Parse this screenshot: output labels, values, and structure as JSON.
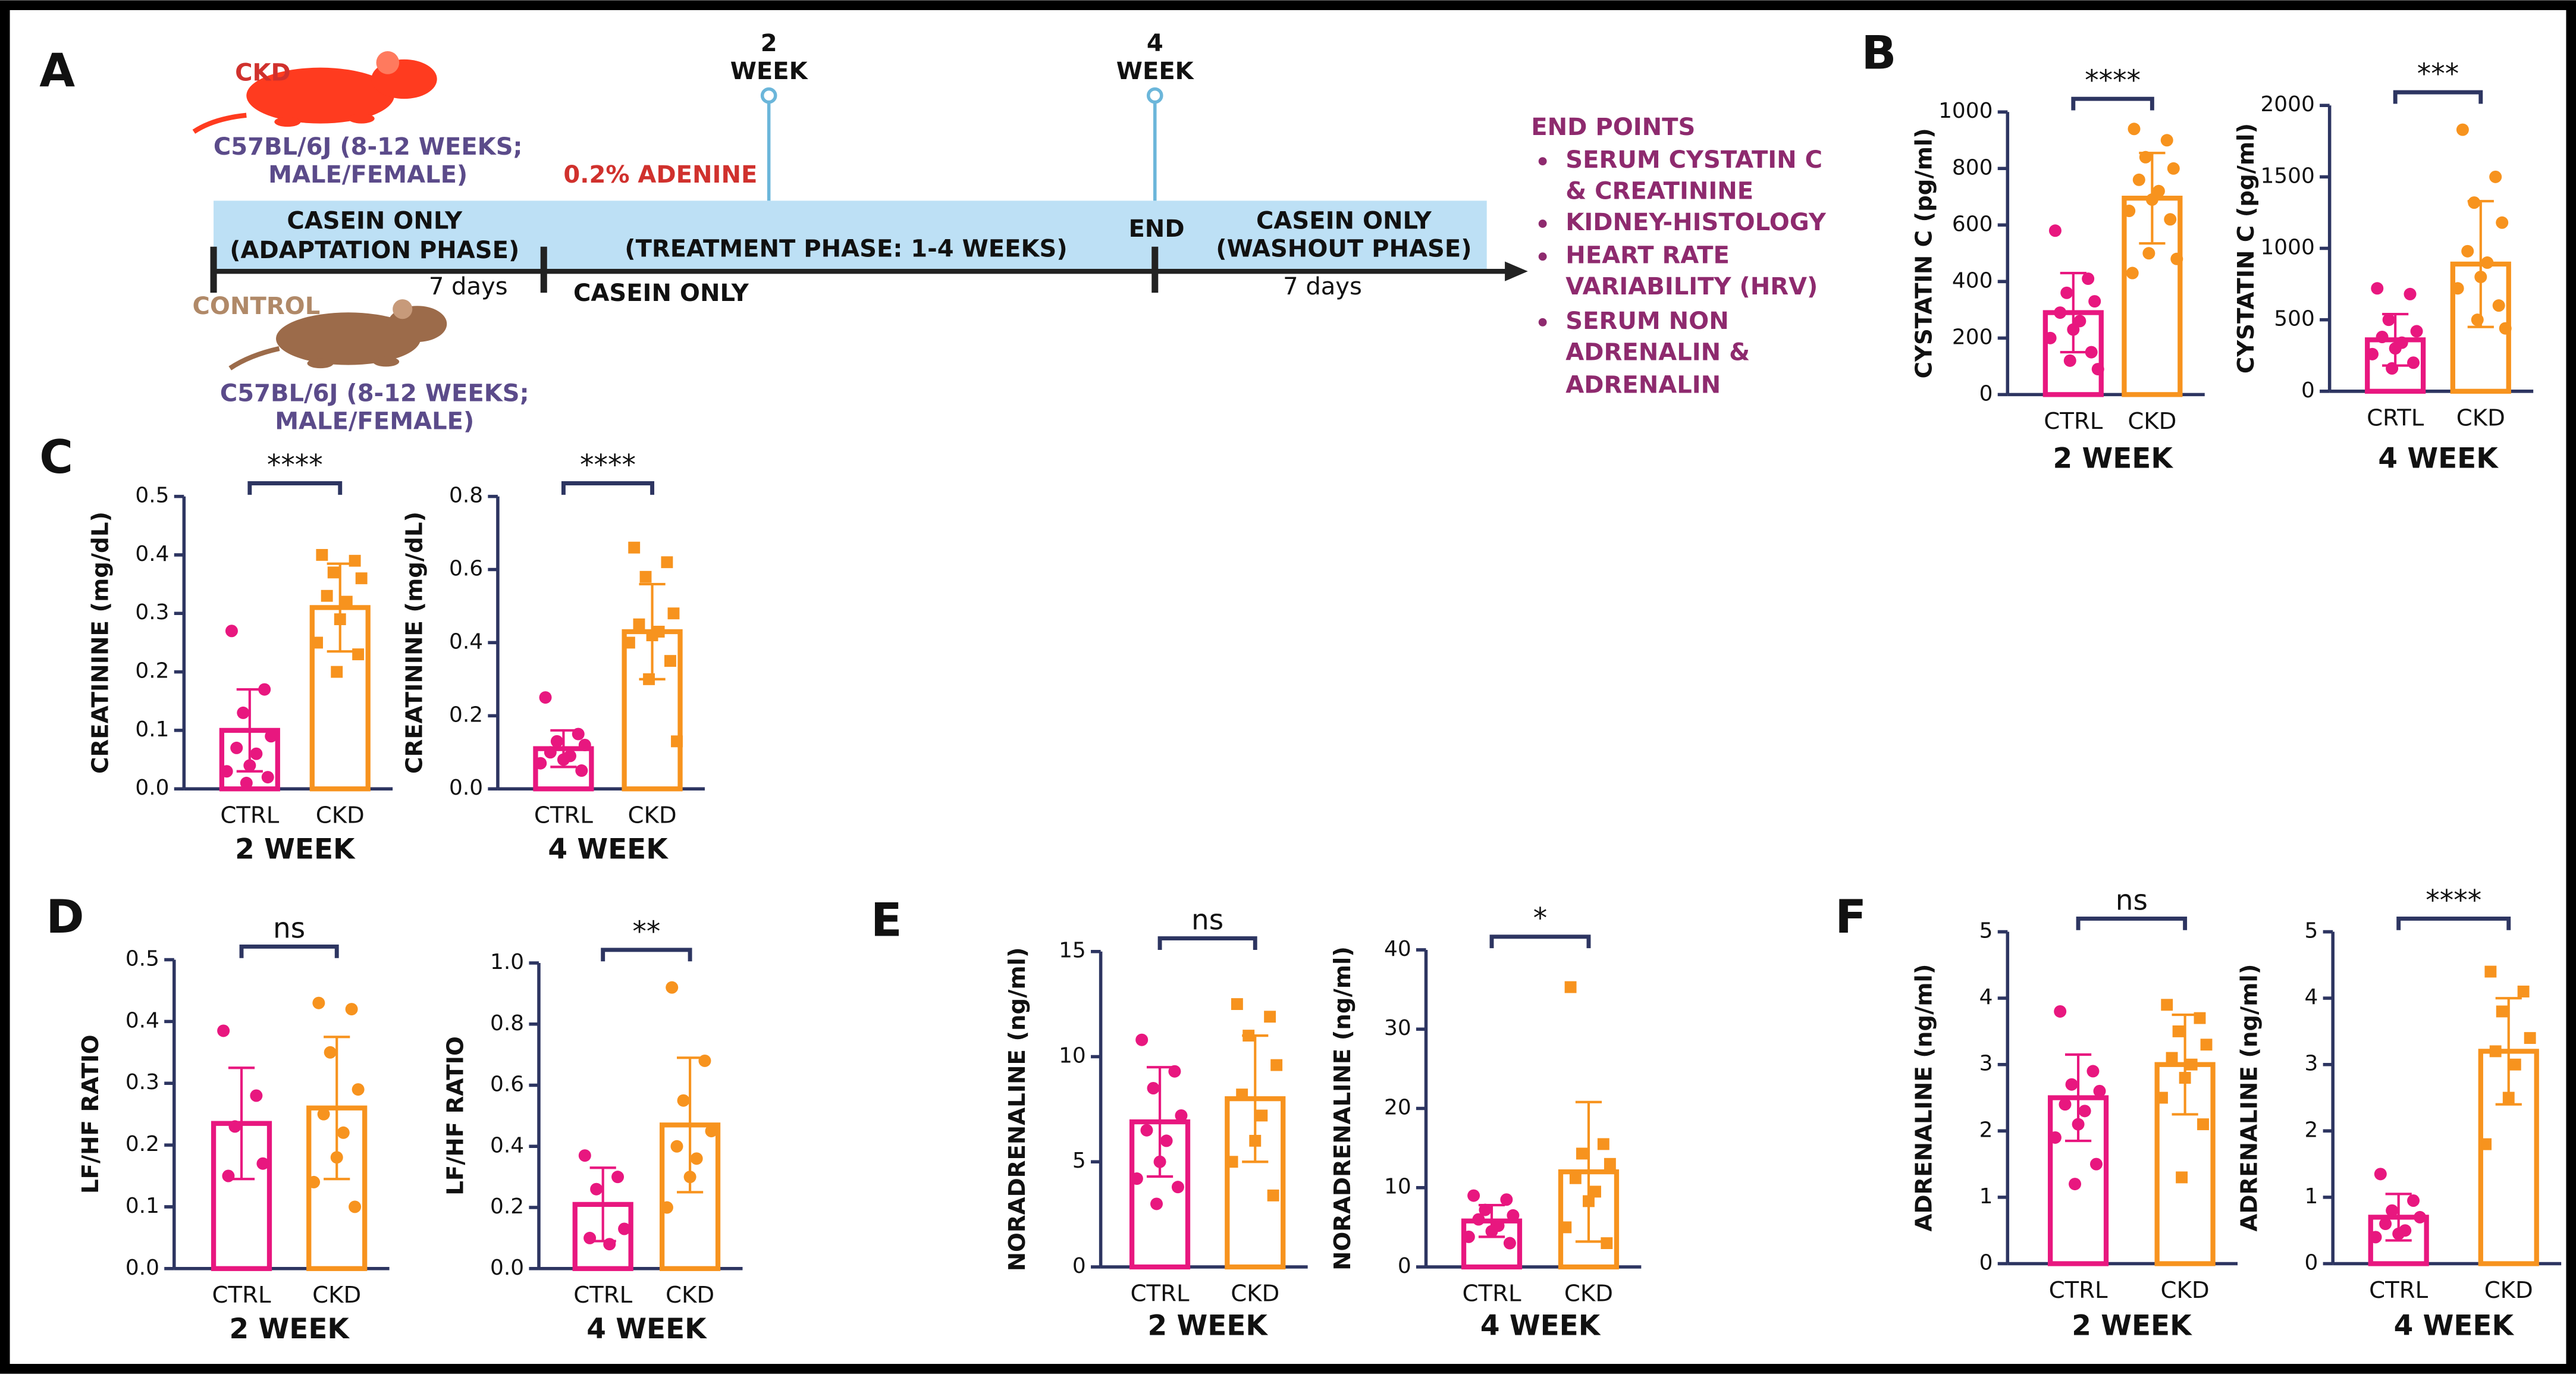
{
  "panel_labels": [
    "A",
    "B",
    "C",
    "D",
    "E",
    "F"
  ],
  "diagram": {
    "ckd_label": "CKD",
    "ckd_strain": [
      "C57BL/6J (8-12 WEEKS;",
      "MALE/FEMALE)"
    ],
    "control_label": "CONTROL",
    "control_strain": [
      "C57BL/6J (8-12 WEEKS;",
      "MALE/FEMALE)"
    ],
    "adenine": "0.2% ADENINE",
    "timepoints": [
      [
        "2",
        "WEEK"
      ],
      [
        "4",
        "WEEK"
      ]
    ],
    "adaptation": [
      "CASEIN ONLY",
      "(ADAPTATION PHASE)"
    ],
    "treatment": "(TREATMENT PHASE: 1-4 WEEKS)",
    "end": "END",
    "washout": [
      "CASEIN ONLY",
      "(WASHOUT PHASE)"
    ],
    "below_line": [
      "7 days",
      "CASEIN ONLY",
      "7 days"
    ],
    "end_points": {
      "title": "END POINTS",
      "items": [
        [
          "SERUM CYSTATIN C",
          "& CREATININE"
        ],
        [
          "KIDNEY-HISTOLOGY"
        ],
        [
          "HEART RATE",
          "VARIABILITY (HRV)"
        ],
        [
          "SERUM NON",
          "ADRENALIN &",
          "ADRENALIN"
        ]
      ]
    }
  },
  "chart_data": [
    {
      "type": "bar",
      "y_label": "CYSTATIN C (pg/ml)",
      "x_label": "2 WEEK",
      "categories": [
        "CTRL",
        "CKD"
      ],
      "colors": [
        "#e8177f",
        "#f7931e"
      ],
      "markers": [
        "circle",
        "circle"
      ],
      "values": [
        290,
        695
      ],
      "errors": [
        140,
        160
      ],
      "points": [
        [
          580,
          410,
          360,
          330,
          290,
          260,
          230,
          200,
          150,
          120,
          90
        ],
        [
          940,
          900,
          840,
          800,
          760,
          720,
          690,
          650,
          620,
          500,
          480,
          430
        ]
      ],
      "significance": "****",
      "ylim": [
        0,
        1000
      ],
      "yticks": [
        0,
        200,
        400,
        600,
        800,
        1000
      ]
    },
    {
      "type": "bar",
      "y_label": "CYSTATIN C (pg/ml)",
      "x_label": "4 WEEK",
      "categories": [
        "CRTL",
        "CKD"
      ],
      "colors": [
        "#e8177f",
        "#f7931e"
      ],
      "markers": [
        "circle",
        "circle"
      ],
      "values": [
        360,
        890
      ],
      "errors": [
        180,
        440
      ],
      "points": [
        [
          720,
          680,
          500,
          420,
          380,
          340,
          300,
          260,
          200,
          160
        ],
        [
          1830,
          1500,
          1320,
          1180,
          980,
          900,
          800,
          720,
          600,
          500,
          440
        ]
      ],
      "significance": "***",
      "ylim": [
        0,
        2000
      ],
      "yticks": [
        0,
        500,
        1000,
        1500,
        2000
      ]
    },
    {
      "type": "bar",
      "y_label": "CREATININE (mg/dL)",
      "x_label": "2 WEEK",
      "categories": [
        "CTRL",
        "CKD"
      ],
      "colors": [
        "#e8177f",
        "#f7931e"
      ],
      "markers": [
        "circle",
        "square"
      ],
      "values": [
        0.1,
        0.31
      ],
      "errors": [
        0.07,
        0.075
      ],
      "points": [
        [
          0.27,
          0.17,
          0.13,
          0.09,
          0.07,
          0.06,
          0.04,
          0.03,
          0.02,
          0.01
        ],
        [
          0.4,
          0.39,
          0.37,
          0.36,
          0.33,
          0.32,
          0.29,
          0.25,
          0.23,
          0.2
        ]
      ],
      "significance": "****",
      "ylim": [
        0,
        0.5
      ],
      "yticks": [
        {
          "value": 0,
          "label": "0.0"
        },
        0.1,
        0.2,
        0.3,
        0.4,
        0.5
      ]
    },
    {
      "type": "bar",
      "y_label": "CREATININE (mg/dL)",
      "x_label": "4 WEEK",
      "categories": [
        "CTRL",
        "CKD"
      ],
      "colors": [
        "#e8177f",
        "#f7931e"
      ],
      "markers": [
        "circle",
        "square"
      ],
      "values": [
        0.11,
        0.43
      ],
      "errors": [
        0.05,
        0.13
      ],
      "points": [
        [
          0.25,
          0.15,
          0.13,
          0.12,
          0.1,
          0.09,
          0.08,
          0.07,
          0.05
        ],
        [
          0.66,
          0.62,
          0.58,
          0.48,
          0.45,
          0.43,
          0.42,
          0.4,
          0.35,
          0.3,
          0.13
        ]
      ],
      "significance": "****",
      "ylim": [
        0,
        0.8
      ],
      "yticks": [
        {
          "value": 0,
          "label": "0.0"
        },
        0.2,
        0.4,
        0.6,
        0.8
      ]
    },
    {
      "type": "bar",
      "y_label": "LF/HF RATIO",
      "x_label": "2 WEEK",
      "categories": [
        "CTRL",
        "CKD"
      ],
      "colors": [
        "#e8177f",
        "#f7931e"
      ],
      "markers": [
        "circle",
        "circle"
      ],
      "values": [
        0.235,
        0.26
      ],
      "errors": [
        0.09,
        0.115
      ],
      "points": [
        [
          0.385,
          0.28,
          0.23,
          0.17,
          0.15
        ],
        [
          0.43,
          0.42,
          0.35,
          0.29,
          0.25,
          0.22,
          0.18,
          0.14,
          0.1
        ]
      ],
      "significance": "ns",
      "ylim": [
        0,
        0.5
      ],
      "yticks": [
        {
          "value": 0,
          "label": "0.0"
        },
        0.1,
        0.2,
        0.3,
        0.4,
        0.5
      ]
    },
    {
      "type": "bar",
      "y_label": "LF/HF RATIO",
      "x_label": "4 WEEK",
      "categories": [
        "CTRL",
        "CKD"
      ],
      "colors": [
        "#e8177f",
        "#f7931e"
      ],
      "markers": [
        "circle",
        "circle"
      ],
      "values": [
        0.21,
        0.47
      ],
      "errors": [
        0.12,
        0.22
      ],
      "points": [
        [
          0.37,
          0.3,
          0.26,
          0.13,
          0.1,
          0.08
        ],
        [
          0.92,
          0.68,
          0.55,
          0.45,
          0.4,
          0.36,
          0.3,
          0.2
        ]
      ],
      "significance": "**",
      "ylim": [
        0,
        1
      ],
      "yticks": [
        {
          "value": 0,
          "label": "0.0"
        },
        0.2,
        0.4,
        0.6,
        0.8,
        {
          "value": 1,
          "label": "1.0"
        }
      ]
    },
    {
      "type": "bar",
      "y_label": "NORADRENALINE (ng/ml)",
      "x_label": "2 WEEK",
      "categories": [
        "CTRL",
        "CKD"
      ],
      "colors": [
        "#e8177f",
        "#f7931e"
      ],
      "markers": [
        "circle",
        "square"
      ],
      "values": [
        6.9,
        8
      ],
      "errors": [
        2.6,
        3
      ],
      "points": [
        [
          10.8,
          9.3,
          8.5,
          7.2,
          6.5,
          6,
          5,
          4.2,
          3.8,
          3
        ],
        [
          12.5,
          11.9,
          11,
          9.6,
          8.2,
          7.2,
          6,
          5,
          3.4
        ]
      ],
      "significance": "ns",
      "ylim": [
        0,
        15
      ],
      "yticks": [
        0,
        5,
        10,
        15
      ]
    },
    {
      "type": "bar",
      "y_label": "NORADRENALINE (ng/ml)",
      "x_label": "4 WEEK",
      "categories": [
        "CTRL",
        "CKD"
      ],
      "colors": [
        "#e8177f",
        "#f7931e"
      ],
      "markers": [
        "circle",
        "square"
      ],
      "values": [
        5.8,
        12
      ],
      "errors": [
        2,
        8.8
      ],
      "points": [
        [
          9,
          8.5,
          7.2,
          6.5,
          6,
          5.2,
          4.5,
          3.8,
          3
        ],
        [
          35.3,
          15.5,
          14.3,
          13,
          11.2,
          9.5,
          8.3,
          5,
          3
        ]
      ],
      "significance": "*",
      "ylim": [
        0,
        40
      ],
      "yticks": [
        0,
        10,
        20,
        30,
        40
      ]
    },
    {
      "type": "bar",
      "y_label": "ADRENALINE (ng/ml)",
      "x_label": "2 WEEK",
      "categories": [
        "CTRL",
        "CKD"
      ],
      "colors": [
        "#e8177f",
        "#f7931e"
      ],
      "markers": [
        "circle",
        "square"
      ],
      "values": [
        2.5,
        3
      ],
      "errors": [
        0.65,
        0.75
      ],
      "points": [
        [
          3.8,
          2.9,
          2.7,
          2.6,
          2.4,
          2.3,
          2.1,
          1.9,
          1.5,
          1.2
        ],
        [
          3.9,
          3.7,
          3.5,
          3.3,
          3.1,
          3,
          2.8,
          2.5,
          2.1,
          1.3
        ]
      ],
      "significance": "ns",
      "ylim": [
        0,
        5
      ],
      "yticks": [
        0,
        1,
        2,
        3,
        4,
        5
      ]
    },
    {
      "type": "bar",
      "y_label": "ADRENALINE (ng/ml)",
      "x_label": "4 WEEK",
      "categories": [
        "CTRL",
        "CKD"
      ],
      "colors": [
        "#e8177f",
        "#f7931e"
      ],
      "markers": [
        "circle",
        "square"
      ],
      "values": [
        0.7,
        3.2
      ],
      "errors": [
        0.35,
        0.8
      ],
      "points": [
        [
          1.35,
          0.95,
          0.8,
          0.7,
          0.6,
          0.5,
          0.45,
          0.4
        ],
        [
          4.4,
          4.1,
          3.8,
          3.4,
          3.2,
          3,
          2.5,
          1.8
        ]
      ],
      "significance": "****",
      "ylim": [
        0,
        5
      ],
      "yticks": [
        0,
        1,
        2,
        3,
        4,
        5
      ]
    }
  ]
}
